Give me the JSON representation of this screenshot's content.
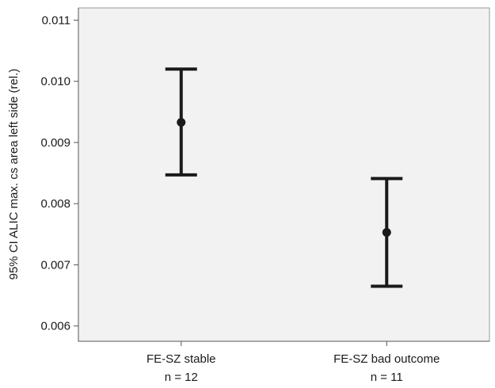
{
  "chart_data": {
    "type": "errorbar",
    "ylabel": "95% CI ALIC max. cs area left side (rel.)",
    "xlabel": "",
    "ylim": [
      0.00575,
      0.0112
    ],
    "yticks": [
      0.006,
      0.007,
      0.008,
      0.009,
      0.01,
      0.011
    ],
    "ytick_labels": [
      "0.006",
      "0.007",
      "0.008",
      "0.009",
      "0.010",
      "0.011"
    ],
    "categories": [
      {
        "label": "FE-SZ stable",
        "n_label": "n = 12"
      },
      {
        "label": "FE-SZ bad outcome",
        "n_label": "n = 11"
      }
    ],
    "points": [
      {
        "mean": 0.00933,
        "lower": 0.00847,
        "upper": 0.0102
      },
      {
        "mean": 0.00753,
        "lower": 0.00665,
        "upper": 0.00841
      }
    ],
    "grid": false,
    "legend": "none",
    "colors": {
      "plot_background": "#f2f2f2",
      "axis": "#555555",
      "marks": "#1a1a1a"
    }
  }
}
